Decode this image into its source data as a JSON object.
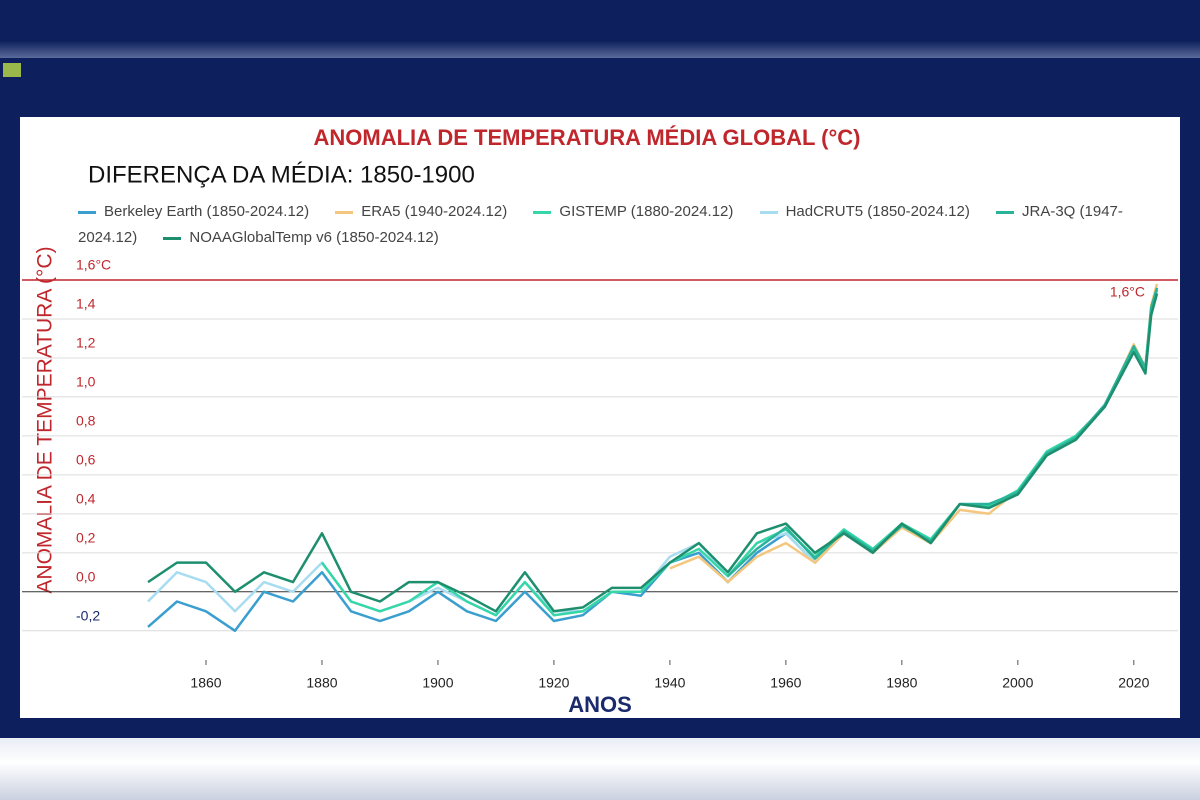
{
  "chart_data": {
    "type": "line",
    "title": "ANOMALIA DE TEMPERATURA MÉDIA GLOBAL (°C)",
    "subtitle": "DIFERENÇA DA MÉDIA: 1850-1900",
    "x_label": "ANOS",
    "y_label": "ANOMALIA DE TEMPERATURA (°C)",
    "x": [
      1850,
      1855,
      1860,
      1865,
      1870,
      1875,
      1880,
      1885,
      1890,
      1895,
      1900,
      1905,
      1910,
      1915,
      1920,
      1925,
      1930,
      1935,
      1940,
      1945,
      1950,
      1955,
      1960,
      1965,
      1970,
      1975,
      1980,
      1985,
      1990,
      1995,
      2000,
      2005,
      2010,
      2015,
      2020,
      2022,
      2023,
      2024
    ],
    "xlim": [
      1850,
      2024
    ],
    "xticks": [
      1860,
      1880,
      1900,
      1920,
      1940,
      1960,
      1980,
      2000,
      2020
    ],
    "ylim": [
      -0.35,
      1.6
    ],
    "yticks": [
      {
        "value": -0.2,
        "label": "-0,2"
      },
      {
        "value": 0,
        "label": "0,0"
      },
      {
        "value": 0.2,
        "label": "0,2"
      },
      {
        "value": 0.4,
        "label": "0,4"
      },
      {
        "value": 0.6,
        "label": "0,6"
      },
      {
        "value": 0.8,
        "label": "0,8"
      },
      {
        "value": 1,
        "label": "1,0"
      },
      {
        "value": 1.2,
        "label": "1,2"
      },
      {
        "value": 1.4,
        "label": "1,4"
      },
      {
        "value": 1.6,
        "label": "1,6°C"
      }
    ],
    "grid": true,
    "threshold": {
      "value": 1.6,
      "label": "1,6°C",
      "color": "#c0272d"
    },
    "series": [
      {
        "name": "Berkeley Earth (1850-2024.12)",
        "color": "#3a9fcf",
        "values": [
          -0.18,
          -0.05,
          -0.1,
          -0.2,
          0.0,
          -0.05,
          0.1,
          -0.1,
          -0.15,
          -0.1,
          0.0,
          -0.1,
          -0.15,
          0.0,
          -0.15,
          -0.12,
          0.0,
          -0.02,
          0.15,
          0.2,
          0.05,
          0.2,
          0.3,
          0.15,
          0.3,
          0.2,
          0.35,
          0.25,
          0.45,
          0.45,
          0.5,
          0.7,
          0.8,
          0.95,
          1.25,
          1.15,
          1.45,
          1.55
        ]
      },
      {
        "name": "ERA5 (1940-2024.12)",
        "color": "#f5c77e",
        "values": [
          null,
          null,
          null,
          null,
          null,
          null,
          null,
          null,
          null,
          null,
          null,
          null,
          null,
          null,
          null,
          null,
          null,
          null,
          0.12,
          0.18,
          0.05,
          0.18,
          0.25,
          0.15,
          0.3,
          0.2,
          0.33,
          0.25,
          0.42,
          0.4,
          0.52,
          0.7,
          0.8,
          0.95,
          1.27,
          1.15,
          1.47,
          1.58
        ]
      },
      {
        "name": "GISTEMP (1880-2024.12)",
        "color": "#35d6a8",
        "values": [
          null,
          null,
          null,
          null,
          null,
          null,
          0.15,
          -0.05,
          -0.1,
          -0.05,
          0.05,
          -0.05,
          -0.12,
          0.05,
          -0.12,
          -0.1,
          0.0,
          0.0,
          0.15,
          0.22,
          0.08,
          0.25,
          0.32,
          0.18,
          0.32,
          0.22,
          0.35,
          0.27,
          0.45,
          0.44,
          0.52,
          0.72,
          0.8,
          0.95,
          1.25,
          1.14,
          1.45,
          1.55
        ]
      },
      {
        "name": "HadCRUT5 (1850-2024.12)",
        "color": "#a8dcf0",
        "values": [
          -0.05,
          0.1,
          0.05,
          -0.1,
          0.05,
          0.0,
          0.15,
          -0.05,
          -0.1,
          -0.05,
          0.02,
          -0.05,
          -0.12,
          0.05,
          -0.1,
          -0.1,
          0.0,
          0.0,
          0.18,
          0.25,
          0.08,
          0.25,
          0.3,
          0.15,
          0.3,
          0.22,
          0.33,
          0.25,
          0.45,
          0.45,
          0.5,
          0.7,
          0.8,
          0.95,
          1.24,
          1.15,
          1.45,
          1.55
        ]
      },
      {
        "name": "JRA-3Q (1947-2024.12)",
        "color": "#2bb39a",
        "values": [
          null,
          null,
          null,
          null,
          null,
          null,
          null,
          null,
          null,
          null,
          null,
          null,
          null,
          null,
          null,
          null,
          null,
          null,
          null,
          null,
          0.08,
          0.22,
          0.33,
          0.17,
          0.31,
          0.21,
          0.34,
          0.26,
          0.45,
          0.45,
          0.51,
          0.71,
          0.79,
          0.96,
          1.26,
          1.15,
          1.46,
          1.56
        ]
      },
      {
        "name": "NOAAGlobalTemp v6 (1850-2024.12)",
        "color": "#1e8f6e",
        "values": [
          0.05,
          0.15,
          0.15,
          0.0,
          0.1,
          0.05,
          0.3,
          0.0,
          -0.05,
          0.05,
          0.05,
          -0.02,
          -0.1,
          0.1,
          -0.1,
          -0.08,
          0.02,
          0.02,
          0.15,
          0.25,
          0.1,
          0.3,
          0.35,
          0.2,
          0.3,
          0.2,
          0.35,
          0.25,
          0.45,
          0.43,
          0.5,
          0.7,
          0.78,
          0.95,
          1.23,
          1.12,
          1.42,
          1.53
        ]
      }
    ]
  }
}
